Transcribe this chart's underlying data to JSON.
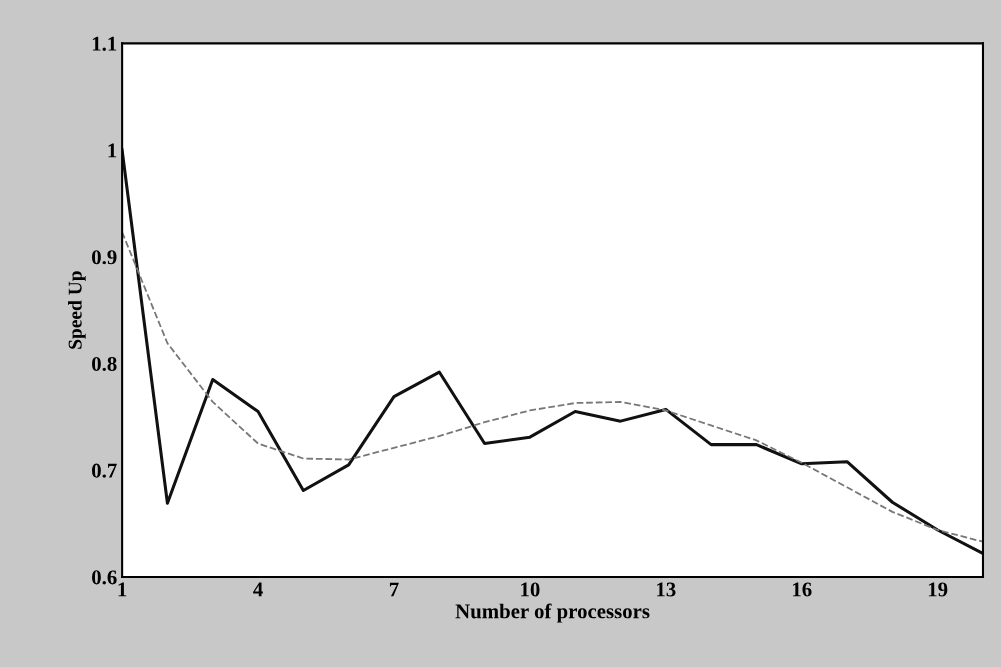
{
  "chart_data": {
    "type": "line",
    "xlabel": "Number of processors",
    "ylabel": "Speed Up",
    "x": [
      1,
      2,
      3,
      4,
      5,
      6,
      7,
      8,
      9,
      10,
      11,
      12,
      13,
      14,
      15,
      16,
      17,
      18,
      19,
      20
    ],
    "series": [
      {
        "color": "#111111",
        "line_style": "solid",
        "values": [
          1.0,
          0.669,
          0.785,
          0.755,
          0.681,
          0.705,
          0.769,
          0.792,
          0.725,
          0.731,
          0.755,
          0.746,
          0.757,
          0.724,
          0.724,
          0.706,
          0.708,
          0.67,
          0.644,
          0.622
        ]
      },
      {
        "color": "#777777",
        "line_style": "dashed",
        "values": [
          0.923,
          0.819,
          0.764,
          0.725,
          0.711,
          0.71,
          0.721,
          0.732,
          0.745,
          0.756,
          0.763,
          0.764,
          0.756,
          0.742,
          0.728,
          0.707,
          0.684,
          0.661,
          0.644,
          0.633
        ]
      }
    ],
    "xlim": [
      1,
      20
    ],
    "ylim": [
      0.6,
      1.1
    ],
    "xticks": [
      1,
      4,
      7,
      10,
      13,
      16,
      19
    ],
    "yticks": [
      0.6,
      0.7,
      0.8,
      0.9,
      {
        "value": 1,
        "label": "1"
      },
      1.1
    ],
    "grid": false,
    "marker": "none"
  }
}
